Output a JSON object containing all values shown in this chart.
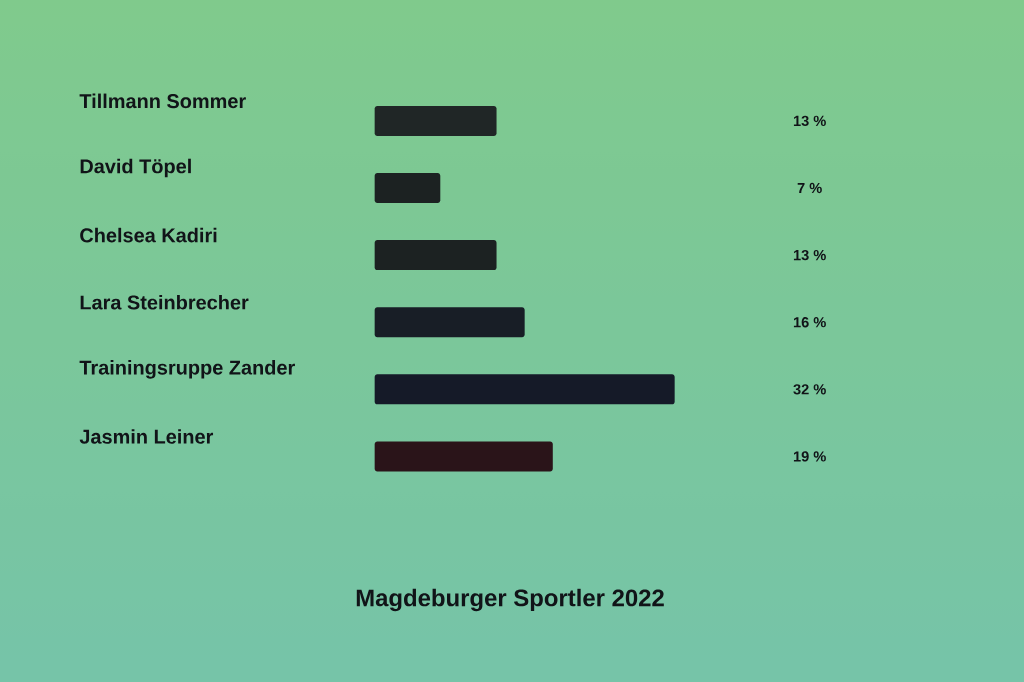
{
  "chart_data": {
    "type": "bar",
    "orientation": "horizontal",
    "title": "Magdeburger Sportler 2022",
    "categories": [
      "Tillmann Sommer",
      "David Töpel",
      "Chelsea Kadiri",
      "Lara Steinbrecher",
      "Trainingsruppe Zander",
      "Jasmin Leiner"
    ],
    "values": [
      13,
      7,
      13,
      16,
      32,
      19
    ],
    "colors": [
      "#202626",
      "#1c2222",
      "#1c2222",
      "#181e26",
      "#151a28",
      "#2a1419"
    ],
    "value_labels": [
      "13 %",
      "7 %",
      "13 %",
      "16 %",
      "32 %",
      "19 %"
    ]
  }
}
